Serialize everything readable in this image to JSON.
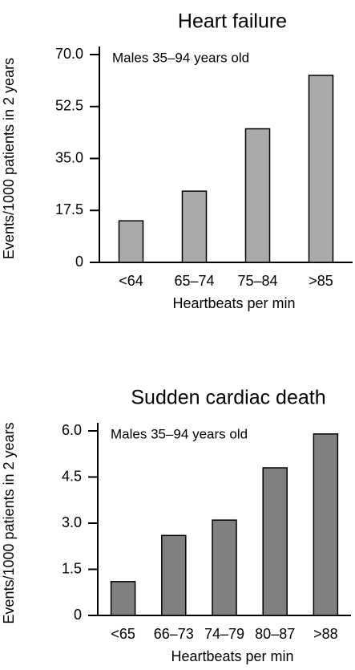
{
  "chart_data": [
    {
      "type": "bar",
      "title": "Heart failure",
      "annotation": "Males 35–94 years old",
      "y_label": "Events/1000 patients in 2 years",
      "x_label": "Heartbeats per min",
      "categories": [
        "<64",
        "65–74",
        "75–84",
        ">85"
      ],
      "values": [
        14,
        24,
        45,
        63
      ],
      "color": "#aaaaaa",
      "ylim": [
        0,
        70
      ],
      "yticks": [
        0,
        17.5,
        {
          "value": 35,
          "label": "35.0"
        },
        52.5,
        {
          "value": 70,
          "label": "70.0"
        }
      ]
    },
    {
      "type": "bar",
      "title": "Sudden cardiac death",
      "annotation": "Males 35–94 years old",
      "y_label": "Events/1000 patients in 2 years",
      "x_label": "Heartbeats per min",
      "categories": [
        "<65",
        "66–73",
        "74–79",
        "80–87",
        ">88"
      ],
      "values": [
        1.1,
        2.6,
        3.1,
        4.8,
        5.9
      ],
      "color": "#808080",
      "ylim": [
        0,
        6
      ],
      "yticks": [
        0,
        1.5,
        {
          "value": 3,
          "label": "3.0"
        },
        4.5,
        {
          "value": 6,
          "label": "6.0"
        }
      ]
    }
  ]
}
